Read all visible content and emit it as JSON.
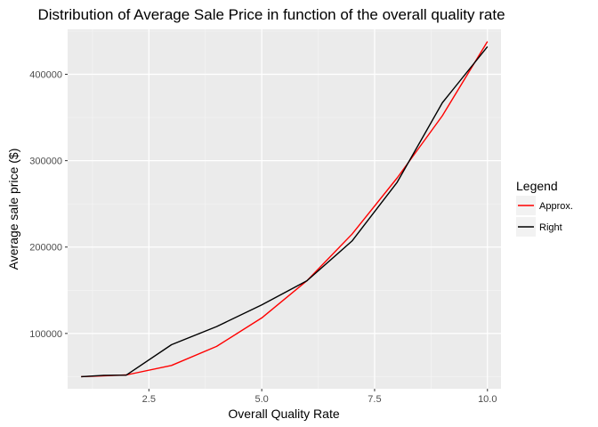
{
  "chart_data": {
    "type": "line",
    "title": "Distribution of Average Sale Price in function of the overall quality rate",
    "xlabel": "Overall Quality Rate",
    "ylabel": "Average sale price ($)",
    "xlim": [
      0.7,
      10.3
    ],
    "ylim": [
      36000,
      452000
    ],
    "x_ticks": [
      2.5,
      5.0,
      7.5,
      10.0
    ],
    "x_tick_labels": [
      "2.5",
      "5.0",
      "7.5",
      "10.0"
    ],
    "y_ticks": [
      100000,
      200000,
      300000,
      400000
    ],
    "y_tick_labels": [
      "100000",
      "200000",
      "300000",
      "400000"
    ],
    "grid": true,
    "legend": {
      "title": "Legend",
      "placement": "right"
    },
    "series": [
      {
        "name": "Approx.",
        "color": "#ff0000",
        "x": [
          1,
          2,
          3,
          4,
          5,
          6,
          7,
          8,
          9,
          10
        ],
        "y": [
          50000,
          52000,
          63000,
          85000,
          118000,
          161000,
          215000,
          280000,
          352000,
          438000
        ]
      },
      {
        "name": "Right",
        "color": "#000000",
        "x": [
          1,
          1.5,
          2,
          3,
          4,
          5,
          6,
          7,
          8,
          9,
          10
        ],
        "y": [
          50000,
          51500,
          51800,
          87000,
          108000,
          133000,
          161000,
          207000,
          275000,
          367000,
          432000
        ]
      }
    ]
  }
}
